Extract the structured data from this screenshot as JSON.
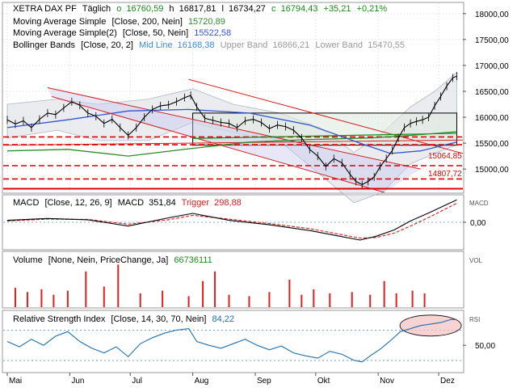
{
  "colors": {
    "price": "#000000",
    "sma200": "#2e8b2e",
    "sma50": "#3355cc",
    "bollinger_fill": "#d8dde4",
    "channel": "#d42020",
    "support": "#e00000",
    "macd": "#000000",
    "trigger": "#d02020",
    "volume": "#e02020",
    "rsi": "#1e6fb0",
    "highlight": "#f3c0c0",
    "box_fill": "#dfeadf"
  },
  "chart_data": [
    {
      "type": "line",
      "panel": "price",
      "title": "XETRA DAX PF",
      "period": "Täglich",
      "ohlc": {
        "open_label": "o",
        "open": "16760,59",
        "high_label": "h",
        "high": "16817,81",
        "low_label": "l",
        "low": "16734,27",
        "close_label": "c",
        "close": "16794,43",
        "change": "+35,21",
        "change_pct": "+0,21%"
      },
      "indicators": [
        {
          "label": "Moving Average Simple",
          "params": "[Close, 200, Nein]",
          "value": "15720,89"
        },
        {
          "label": "Moving Average Simple(2)",
          "params": "[Close, 50, Nein]",
          "value": "15522,58"
        },
        {
          "label": "Bollinger Bands",
          "params": "[Close, 20, 2]",
          "mid_label": "Mid Line",
          "mid": "16168,38",
          "upper_label": "Upper Band",
          "upper": "16866,21",
          "lower_label": "Lower Band",
          "lower": "15470,55"
        }
      ],
      "y_ticks": [
        "18000,00",
        "17500,00",
        "17000,00",
        "16500,00",
        "16000,00",
        "15500,00",
        "15000,00"
      ],
      "y_tick_values": [
        18000,
        17500,
        17000,
        16500,
        16000,
        15500,
        15000
      ],
      "ylim": [
        14550,
        18200
      ],
      "x_tick_labels": [
        "Mai",
        "Jun",
        "Jul",
        "Aug",
        "Sep",
        "Okt",
        "Nov",
        "Dez"
      ],
      "x_tick_days": [
        0,
        31,
        61,
        92,
        123,
        153,
        184,
        214
      ],
      "x_range_days": [
        -2,
        226
      ],
      "close_points": [
        [
          0,
          15950
        ],
        [
          4,
          15870
        ],
        [
          8,
          15930
        ],
        [
          12,
          15800
        ],
        [
          16,
          15960
        ],
        [
          20,
          16080
        ],
        [
          24,
          16050
        ],
        [
          28,
          16180
        ],
        [
          32,
          16300
        ],
        [
          36,
          16230
        ],
        [
          40,
          16080
        ],
        [
          44,
          16020
        ],
        [
          48,
          15880
        ],
        [
          52,
          15960
        ],
        [
          56,
          15800
        ],
        [
          60,
          15650
        ],
        [
          64,
          15800
        ],
        [
          68,
          16000
        ],
        [
          72,
          16150
        ],
        [
          76,
          16220
        ],
        [
          80,
          16240
        ],
        [
          84,
          16300
        ],
        [
          88,
          16380
        ],
        [
          91,
          16420
        ],
        [
          94,
          16200
        ],
        [
          98,
          15980
        ],
        [
          102,
          15940
        ],
        [
          106,
          15900
        ],
        [
          110,
          15880
        ],
        [
          114,
          15800
        ],
        [
          118,
          15930
        ],
        [
          122,
          15960
        ],
        [
          126,
          15900
        ],
        [
          130,
          15780
        ],
        [
          134,
          15850
        ],
        [
          138,
          15820
        ],
        [
          142,
          15750
        ],
        [
          146,
          15600
        ],
        [
          150,
          15380
        ],
        [
          154,
          15250
        ],
        [
          158,
          15050
        ],
        [
          162,
          15200
        ],
        [
          166,
          15120
        ],
        [
          170,
          14900
        ],
        [
          173,
          14760
        ],
        [
          176,
          14700
        ],
        [
          179,
          14760
        ],
        [
          182,
          14850
        ],
        [
          185,
          15050
        ],
        [
          188,
          15200
        ],
        [
          191,
          15360
        ],
        [
          194,
          15600
        ],
        [
          197,
          15800
        ],
        [
          200,
          15880
        ],
        [
          203,
          15920
        ],
        [
          206,
          15950
        ],
        [
          209,
          16000
        ],
        [
          212,
          16220
        ],
        [
          215,
          16400
        ],
        [
          218,
          16600
        ],
        [
          221,
          16760
        ],
        [
          223,
          16794
        ]
      ],
      "sma200_points": [
        [
          0,
          15350
        ],
        [
          30,
          15380
        ],
        [
          60,
          15250
        ],
        [
          90,
          15390
        ],
        [
          120,
          15520
        ],
        [
          150,
          15570
        ],
        [
          180,
          15600
        ],
        [
          200,
          15650
        ],
        [
          223,
          15720
        ]
      ],
      "sma50_points": [
        [
          0,
          15800
        ],
        [
          30,
          15950
        ],
        [
          60,
          16120
        ],
        [
          90,
          16150
        ],
        [
          120,
          16080
        ],
        [
          150,
          15850
        ],
        [
          175,
          15500
        ],
        [
          190,
          15300
        ],
        [
          205,
          15350
        ],
        [
          223,
          15522
        ]
      ],
      "bollinger_upper": [
        [
          0,
          16250
        ],
        [
          25,
          16350
        ],
        [
          45,
          16250
        ],
        [
          70,
          16350
        ],
        [
          92,
          16550
        ],
        [
          112,
          16250
        ],
        [
          135,
          16080
        ],
        [
          155,
          15800
        ],
        [
          172,
          15320
        ],
        [
          186,
          15700
        ],
        [
          200,
          16200
        ],
        [
          212,
          16500
        ],
        [
          223,
          16866
        ]
      ],
      "bollinger_lower": [
        [
          0,
          15600
        ],
        [
          25,
          15750
        ],
        [
          45,
          15550
        ],
        [
          70,
          15550
        ],
        [
          92,
          15900
        ],
        [
          112,
          15700
        ],
        [
          135,
          15550
        ],
        [
          155,
          14900
        ],
        [
          172,
          14350
        ],
        [
          186,
          14550
        ],
        [
          200,
          15100
        ],
        [
          212,
          15300
        ],
        [
          223,
          15470
        ]
      ],
      "channel_lines": [
        [
          [
            20,
            16570
          ],
          [
            205,
            15000
          ]
        ],
        [
          [
            90,
            16730
          ],
          [
            226,
            15300
          ]
        ],
        [
          [
            22,
            16400
          ],
          [
            187,
            14550
          ]
        ],
        [
          [
            -2,
            15460
          ],
          [
            226,
            15560
          ]
        ]
      ],
      "resistance_box": {
        "x": [
          92,
          223
        ],
        "y": [
          15460,
          16080
        ]
      },
      "green_line": [
        [
          92,
          15590
        ],
        [
          223,
          15690
        ]
      ],
      "support_levels": [
        {
          "value": 15620,
          "label": ""
        },
        {
          "value": 15470,
          "label": ""
        },
        {
          "value": 15064.85,
          "label": "15064,85"
        },
        {
          "value": 14807.72,
          "label": "14807,72"
        },
        {
          "value": 14620,
          "label": ""
        }
      ],
      "volume_scale_top": 4.0
    },
    {
      "type": "line",
      "panel": "macd",
      "title": "MACD",
      "params": "[Close, 12, 26, 9]",
      "macd_label": "MACD",
      "macd_value": "351,84",
      "trigger_label": "Trigger",
      "trigger_value": "298,88",
      "axis_label": "MACD",
      "y_ticks": [
        "0,00"
      ],
      "y_tick_values": [
        0
      ],
      "ylim": [
        -420,
        420
      ],
      "macd_points": [
        [
          0,
          30
        ],
        [
          20,
          60
        ],
        [
          40,
          40
        ],
        [
          60,
          -60
        ],
        [
          80,
          70
        ],
        [
          92,
          140
        ],
        [
          110,
          30
        ],
        [
          130,
          -40
        ],
        [
          150,
          -130
        ],
        [
          165,
          -220
        ],
        [
          175,
          -280
        ],
        [
          183,
          -220
        ],
        [
          192,
          -120
        ],
        [
          200,
          20
        ],
        [
          210,
          160
        ],
        [
          218,
          280
        ],
        [
          223,
          352
        ]
      ],
      "trigger_points": [
        [
          0,
          20
        ],
        [
          20,
          50
        ],
        [
          40,
          45
        ],
        [
          60,
          -30
        ],
        [
          80,
          40
        ],
        [
          92,
          110
        ],
        [
          110,
          50
        ],
        [
          130,
          -20
        ],
        [
          150,
          -100
        ],
        [
          165,
          -190
        ],
        [
          175,
          -250
        ],
        [
          183,
          -240
        ],
        [
          192,
          -170
        ],
        [
          200,
          -60
        ],
        [
          210,
          90
        ],
        [
          218,
          220
        ],
        [
          223,
          299
        ]
      ]
    },
    {
      "type": "bar",
      "panel": "volume",
      "title": "Volume",
      "params": "[None, Nein, PriceChange, Ja]",
      "value": "66736111",
      "axis_label": "VOL",
      "x_days": [
        4,
        10,
        17,
        23,
        30,
        39,
        48,
        55,
        66,
        77,
        90,
        97,
        103,
        110,
        120,
        130,
        140,
        146,
        152,
        160,
        171,
        180,
        187,
        193,
        201,
        207
      ],
      "values": [
        1.4,
        1.1,
        1.3,
        0.9,
        1.2,
        2.6,
        1.5,
        3.1,
        1.0,
        1.2,
        0.8,
        1.9,
        2.6,
        0.9,
        0.8,
        1.1,
        2.0,
        0.9,
        1.3,
        1.0,
        1.1,
        0.9,
        1.9,
        1.0,
        1.2,
        1.0
      ],
      "ylim": [
        0,
        4
      ]
    },
    {
      "type": "line",
      "panel": "rsi",
      "title": "Relative Strength Index",
      "params": "[Close, 14, 30, 70, Nein]",
      "value": "84,22",
      "axis_label": "RSI",
      "y_ticks": [
        "50,00"
      ],
      "y_tick_values": [
        50
      ],
      "ylim": [
        15,
        95
      ],
      "reference_levels": [
        70,
        30
      ],
      "rsi_points": [
        [
          0,
          55
        ],
        [
          6,
          48
        ],
        [
          12,
          58
        ],
        [
          18,
          50
        ],
        [
          24,
          62
        ],
        [
          30,
          68
        ],
        [
          36,
          55
        ],
        [
          42,
          46
        ],
        [
          48,
          40
        ],
        [
          54,
          48
        ],
        [
          60,
          35
        ],
        [
          66,
          52
        ],
        [
          72,
          60
        ],
        [
          78,
          66
        ],
        [
          84,
          70
        ],
        [
          90,
          72
        ],
        [
          94,
          55
        ],
        [
          100,
          50
        ],
        [
          106,
          46
        ],
        [
          112,
          52
        ],
        [
          118,
          58
        ],
        [
          124,
          50
        ],
        [
          130,
          44
        ],
        [
          136,
          49
        ],
        [
          142,
          40
        ],
        [
          148,
          36
        ],
        [
          154,
          33
        ],
        [
          160,
          42
        ],
        [
          166,
          38
        ],
        [
          172,
          30
        ],
        [
          176,
          28
        ],
        [
          180,
          36
        ],
        [
          185,
          45
        ],
        [
          190,
          56
        ],
        [
          195,
          68
        ],
        [
          200,
          72
        ],
        [
          205,
          76
        ],
        [
          210,
          78
        ],
        [
          215,
          80
        ],
        [
          220,
          84
        ],
        [
          223,
          84
        ]
      ]
    }
  ]
}
